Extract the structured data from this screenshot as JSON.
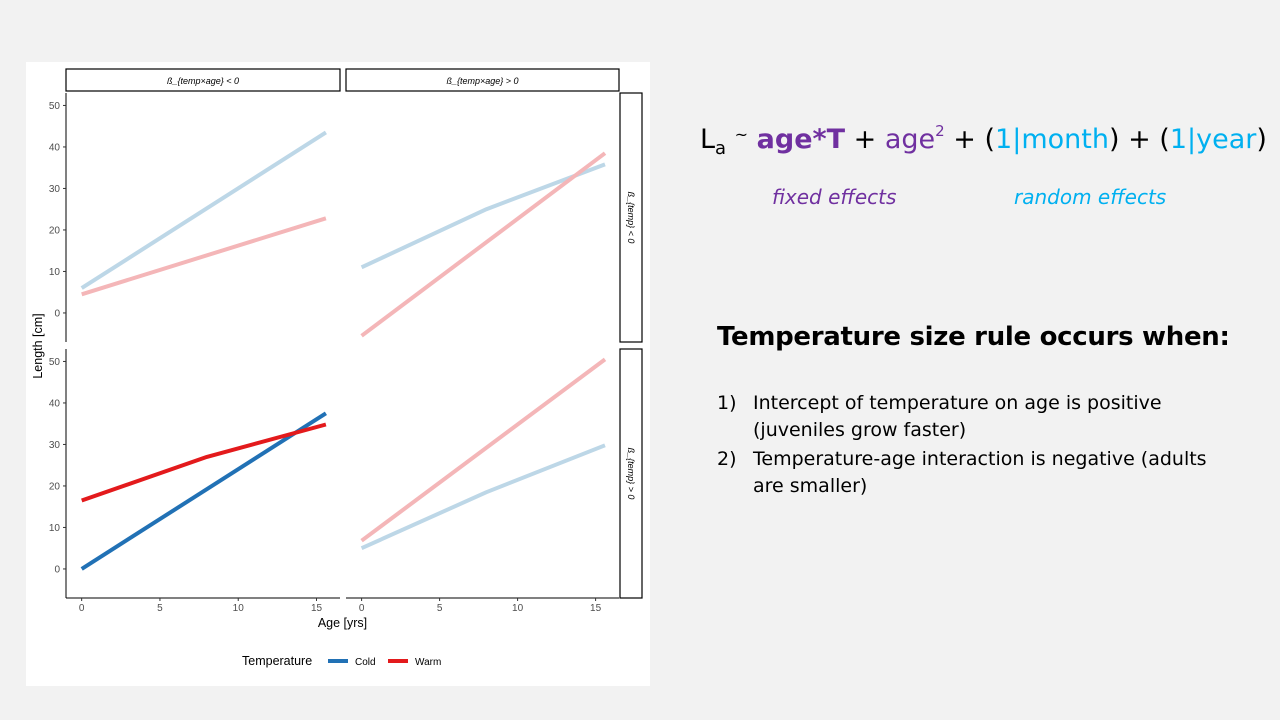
{
  "formula": {
    "lhs": "L",
    "lhs_sub": "a",
    "tilde": "~",
    "term1": "age*T",
    "plus1": " + ",
    "term2": "age",
    "term2_sup": "2",
    "plus2": " + (",
    "re1_num": "1",
    "re1_bar": "|",
    "re1_name": "month",
    "plus3": ") + (",
    "re2_num": "1",
    "re2_bar": "|",
    "re2_name": "year",
    "close": ")"
  },
  "labels": {
    "fixed_effects": "fixed effects",
    "random_effects": "random effects"
  },
  "rule": {
    "heading": "Temperature size rule occurs when:",
    "items": [
      {
        "num": "1)",
        "text": "Intercept of temperature on age is positive (juveniles grow faster)"
      },
      {
        "num": "2)",
        "text": "Temperature-age interaction is negative (adults are smaller)"
      }
    ]
  },
  "colors": {
    "cold": "#2171b5",
    "warm": "#e31a1c",
    "cold_faded": "#bdd7e7",
    "warm_faded": "#f4b6b8",
    "purple": "#7030a0",
    "blue": "#00b0f0"
  },
  "chart_data": {
    "type": "line",
    "xlabel": "Age [yrs]",
    "ylabel": "Length [cm]",
    "xlim": [
      -1,
      16.5
    ],
    "ylim": [
      -7,
      53
    ],
    "x_ticks": [
      0,
      5,
      10,
      15
    ],
    "y_ticks": [
      0,
      10,
      20,
      30,
      40,
      50
    ],
    "grid": false,
    "legend": {
      "title": "Temperature",
      "position": "bottom",
      "entries": [
        {
          "name": "Cold",
          "color": "#2171b5"
        },
        {
          "name": "Warm",
          "color": "#e31a1c"
        }
      ]
    },
    "facet_columns": [
      "ß_{temp×age} < 0",
      "ß_{temp×age} > 0"
    ],
    "facet_rows": [
      "ß_{temp} < 0",
      "ß_{temp} > 0"
    ],
    "panels": [
      {
        "row": 0,
        "col": 0,
        "series": [
          {
            "name": "Cold",
            "highlighted": false,
            "x": [
              0,
              15.6
            ],
            "y": [
              6,
              43.5
            ]
          },
          {
            "name": "Warm",
            "highlighted": false,
            "x": [
              0,
              15.6
            ],
            "y": [
              4.5,
              22.8
            ]
          }
        ]
      },
      {
        "row": 0,
        "col": 1,
        "series": [
          {
            "name": "Cold",
            "highlighted": false,
            "x": [
              0,
              8,
              15.6
            ],
            "y": [
              11,
              25,
              35.8
            ]
          },
          {
            "name": "Warm",
            "highlighted": false,
            "x": [
              0,
              15.6
            ],
            "y": [
              -5.5,
              38.5
            ]
          }
        ]
      },
      {
        "row": 1,
        "col": 0,
        "series": [
          {
            "name": "Cold",
            "highlighted": true,
            "x": [
              0,
              15.6
            ],
            "y": [
              0,
              37.5
            ]
          },
          {
            "name": "Warm",
            "highlighted": true,
            "x": [
              0,
              8,
              15.6
            ],
            "y": [
              16.5,
              27,
              34.8
            ]
          }
        ]
      },
      {
        "row": 1,
        "col": 1,
        "series": [
          {
            "name": "Cold",
            "highlighted": false,
            "x": [
              0,
              8,
              15.6
            ],
            "y": [
              5,
              18.5,
              29.8
            ]
          },
          {
            "name": "Warm",
            "highlighted": false,
            "x": [
              0,
              15.6
            ],
            "y": [
              6.8,
              50.5
            ]
          }
        ]
      }
    ]
  }
}
